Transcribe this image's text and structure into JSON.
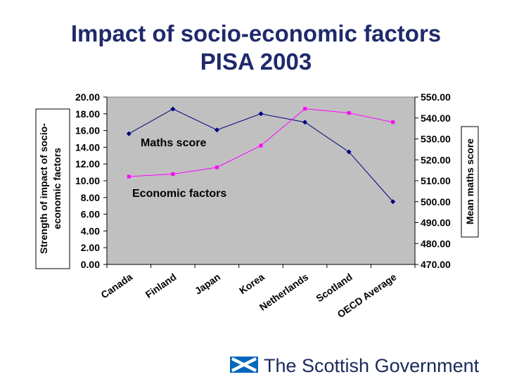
{
  "title": {
    "line1": "Impact of socio-economic factors",
    "line2": "PISA 2003"
  },
  "chart_data": {
    "type": "line",
    "categories": [
      "Canada",
      "Finland",
      "Japan",
      "Korea",
      "Netherlands",
      "Scotland",
      "OECD Average"
    ],
    "ylabel_left": [
      "Strength of impact of socio-",
      "economic factors"
    ],
    "ylabel_right": "Mean maths score",
    "ylim_left": [
      0,
      20
    ],
    "ylim_right": [
      470,
      550
    ],
    "left_ticks": [
      "0.00",
      "2.00",
      "4.00",
      "6.00",
      "8.00",
      "10.00",
      "12.00",
      "14.00",
      "16.00",
      "18.00",
      "20.00"
    ],
    "right_ticks": [
      "470.00",
      "480.00",
      "490.00",
      "500.00",
      "510.00",
      "520.00",
      "530.00",
      "540.00",
      "550.00"
    ],
    "plot_background": "#c0c0c0",
    "series": [
      {
        "name": "Maths score",
        "axis": "right",
        "color": "#000080",
        "marker": "diamond",
        "values": [
          532.5,
          544.3,
          534.3,
          542.0,
          538.0,
          523.8,
          500.0
        ]
      },
      {
        "name": "Economic factors",
        "axis": "left",
        "color": "#ff00ff",
        "marker": "square",
        "values": [
          10.5,
          10.8,
          11.6,
          14.2,
          18.6,
          18.1,
          17.0
        ]
      }
    ]
  },
  "logo": {
    "text": "The Scottish Government",
    "flag_blue": "#0065bd"
  }
}
